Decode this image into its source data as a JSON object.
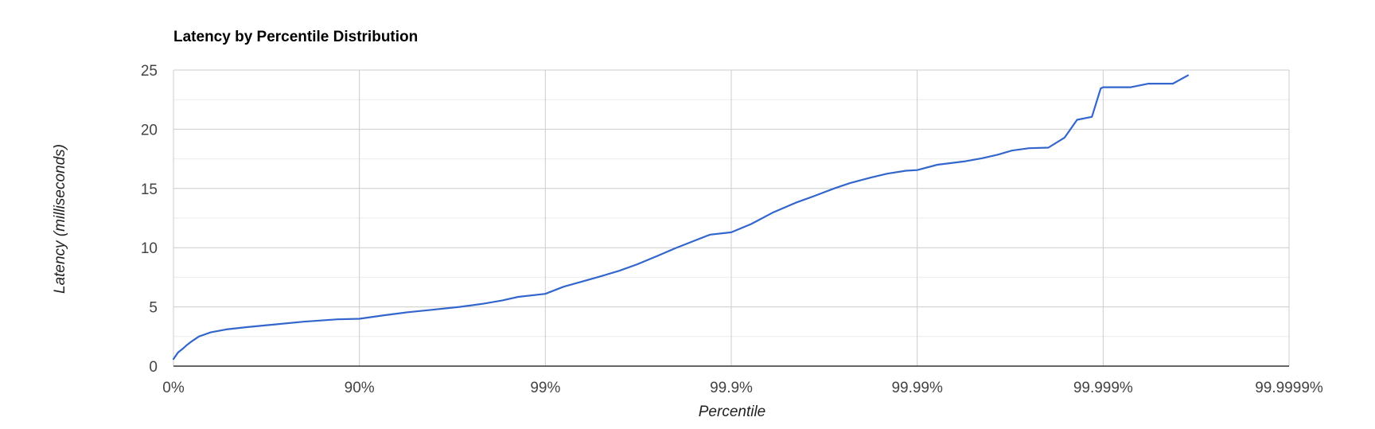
{
  "chart_data": {
    "type": "line",
    "title": "Latency by Percentile Distribution",
    "xlabel": "Percentile",
    "ylabel": "Latency (milliseconds)",
    "x_scale": "log-percentile (1/(1-p))",
    "x_ticks": [
      "0%",
      "90%",
      "99%",
      "99.9%",
      "99.99%",
      "99.999%",
      "99.9999%"
    ],
    "y_ticks": [
      "0",
      "5",
      "10",
      "15",
      "20",
      "25"
    ],
    "xlim": [
      "0%",
      "99.9999%"
    ],
    "ylim": [
      0,
      25
    ],
    "grid": true,
    "line_color": "#3366cc",
    "series": [
      {
        "x": [
          "0%",
          "5.5%",
          "10.6%",
          "15.6%",
          "20.3%",
          "27%",
          "36.9%",
          "47.9%",
          "60.2%",
          "70.8%",
          "80%",
          "86.9%",
          "90%",
          "92.7%",
          "94.5%",
          "95.9%",
          "97.1%",
          "97.8%",
          "98.3%",
          "98.6%",
          "99%",
          "99.2%",
          "99.37%",
          "99.5%",
          "99.6%",
          "99.68%",
          "99.75%",
          "99.8%",
          "99.84%",
          "99.87%",
          "99.9%",
          "99.922%",
          "99.94%",
          "99.955%",
          "99.964%",
          "99.972%",
          "99.977%",
          "99.982%",
          "99.9855%",
          "99.9885%",
          "99.99%",
          "99.9922%",
          "99.9945%",
          "99.9955%",
          "99.9963%",
          "99.9969%",
          "99.9975%",
          "99.99803%",
          "99.99839%",
          "99.99862%",
          "99.99885%",
          "99.99897%",
          "99.999%",
          "99.99929%",
          "99.99943%",
          "99.99949%",
          "99.999578%",
          "99.99965%"
        ],
        "values": [
          0.6,
          1.15,
          1.45,
          1.8,
          2.1,
          2.5,
          2.85,
          3.1,
          3.3,
          3.5,
          3.75,
          3.95,
          4.0,
          4.3,
          4.55,
          4.75,
          5.0,
          5.25,
          5.55,
          5.85,
          6.1,
          6.7,
          7.15,
          7.6,
          8.05,
          8.6,
          9.3,
          9.95,
          10.55,
          11.1,
          11.3,
          12.0,
          12.95,
          13.8,
          14.35,
          15.0,
          15.45,
          15.9,
          16.25,
          16.5,
          16.55,
          17.0,
          17.3,
          17.55,
          17.85,
          18.2,
          18.4,
          18.45,
          19.3,
          20.8,
          21.05,
          23.45,
          23.55,
          23.55,
          23.85,
          23.85,
          23.85,
          24.55
        ]
      }
    ]
  }
}
